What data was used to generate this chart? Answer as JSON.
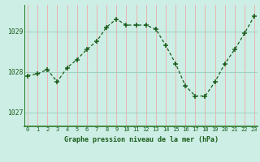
{
  "hours": [
    0,
    1,
    2,
    3,
    4,
    5,
    6,
    7,
    8,
    9,
    10,
    11,
    12,
    13,
    14,
    15,
    16,
    17,
    18,
    19,
    20,
    21,
    22,
    23
  ],
  "pressure": [
    1027.9,
    1027.95,
    1028.05,
    1027.75,
    1028.1,
    1028.3,
    1028.55,
    1028.75,
    1029.1,
    1029.3,
    1029.15,
    1029.15,
    1029.15,
    1029.05,
    1028.65,
    1028.2,
    1027.65,
    1027.4,
    1027.4,
    1027.75,
    1028.2,
    1028.55,
    1028.95,
    1029.38
  ],
  "line_color": "#1a5c1a",
  "bg_color": "#cceee4",
  "plot_bg_color": "#cceee4",
  "hgrid_color": "#99ccbb",
  "vgrid_color": "#f0aaaa",
  "ytick_vals": [
    1027,
    1028,
    1029
  ],
  "ylim": [
    1026.65,
    1029.65
  ],
  "xlim": [
    -0.3,
    23.3
  ],
  "xlabel": "Graphe pression niveau de la mer (hPa)",
  "xlabel_color": "#1a5c1a",
  "border_color": "#2a7a2a",
  "xtick_labels": [
    "0",
    "1",
    "2",
    "3",
    "4",
    "5",
    "6",
    "7",
    "8",
    "9",
    "10",
    "11",
    "12",
    "13",
    "14",
    "15",
    "16",
    "17",
    "18",
    "19",
    "20",
    "21",
    "22",
    "23"
  ]
}
